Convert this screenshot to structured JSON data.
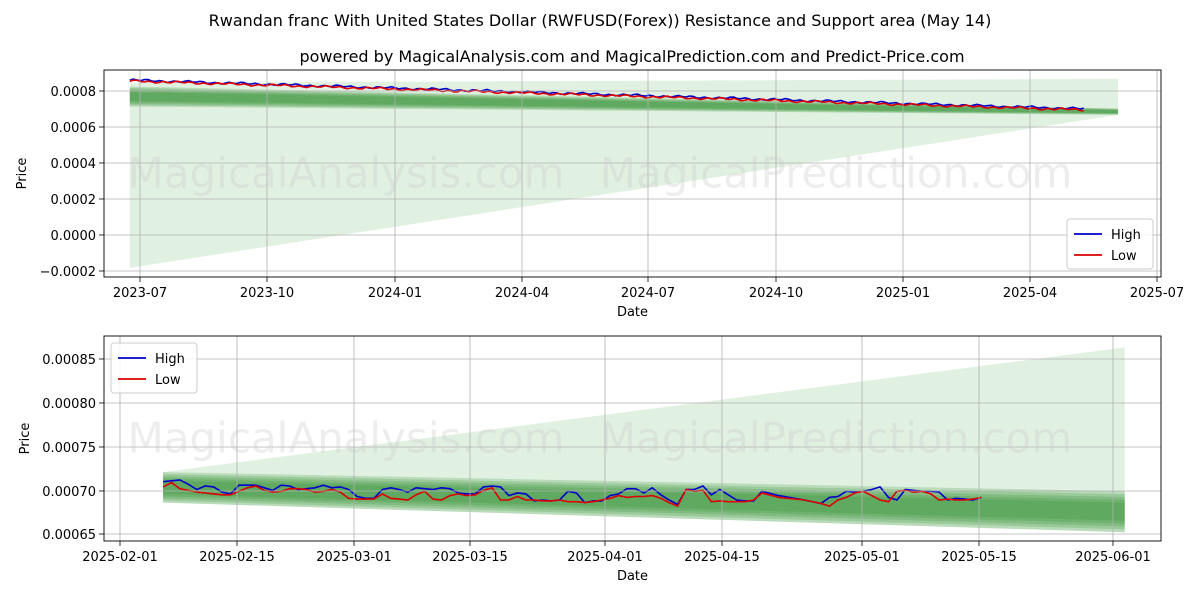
{
  "header": {
    "title": "Rwandan franc With United States Dollar (RWFUSD(Forex)) Resistance and Support area (May 14)",
    "subtitle": "powered by MagicalAnalysis.com and MagicalPrediction.com and Predict-Price.com"
  },
  "watermarks": [
    "MagicalAnalysis.com",
    "MagicalPrediction.com"
  ],
  "colors": {
    "high": "#0000cc",
    "low": "#dd0000",
    "band": "#2e8b2e",
    "fan": "#c8e6c8"
  },
  "chart_data": [
    {
      "type": "line",
      "xlabel": "Date",
      "ylabel": "Price",
      "x_ticks": [
        "2023-07",
        "2023-10",
        "2024-01",
        "2024-04",
        "2024-07",
        "2024-10",
        "2025-01",
        "2025-04",
        "2025-07"
      ],
      "y_ticks": [
        "−0.0002",
        "0.0000",
        "0.0002",
        "0.0004",
        "0.0006",
        "0.0008"
      ],
      "ylim": [
        -0.00022,
        0.00091
      ],
      "xlim_months": [
        -0.3,
        24.3
      ],
      "legend": {
        "position": "lower-right",
        "entries": [
          "High",
          "Low"
        ]
      },
      "series": [
        {
          "name": "High",
          "start": {
            "month": 0.3,
            "value": 0.000855
          },
          "end": {
            "month": 22.5,
            "value": 0.000698
          }
        },
        {
          "name": "Low",
          "start": {
            "month": 0.3,
            "value": 0.00085
          },
          "end": {
            "month": 22.5,
            "value": 0.000692
          }
        }
      ],
      "fan": {
        "start_month": 0.3,
        "end_month": 23.3,
        "start_top": 0.00084,
        "start_bottom": -0.00017,
        "end_top": 0.000862,
        "end_bottom": 0.000665
      },
      "band": {
        "start_month": 0.3,
        "end_month": 23.3,
        "start_top": 0.00082,
        "start_bottom": 0.00071,
        "end_top": 0.0007,
        "end_bottom": 0.000665
      }
    },
    {
      "type": "line",
      "xlabel": "Date",
      "ylabel": "Price",
      "x_ticks": [
        "2025-02-01",
        "2025-02-15",
        "2025-03-01",
        "2025-03-15",
        "2025-04-01",
        "2025-04-15",
        "2025-05-01",
        "2025-05-15",
        "2025-06-01"
      ],
      "y_ticks": [
        "0.00065",
        "0.00070",
        "0.00075",
        "0.00080",
        "0.00085"
      ],
      "ylim": [
        0.000643,
        0.000878
      ],
      "xlim_days": [
        -3.0,
        122.3
      ],
      "legend": {
        "position": "top-left",
        "entries": [
          "High",
          "Low"
        ]
      },
      "series": [
        {
          "name": "High",
          "day": [
            4,
            5,
            6,
            7,
            8,
            9,
            10,
            11,
            12,
            13,
            14,
            15,
            16,
            17,
            18,
            19,
            20,
            21,
            22,
            23,
            24,
            25,
            26,
            27,
            28,
            29,
            30,
            31,
            32,
            33,
            34,
            35,
            36,
            37,
            38,
            39,
            40,
            41,
            42,
            43,
            44,
            45,
            46,
            47,
            48,
            49,
            50,
            51,
            52,
            53,
            54,
            55,
            56,
            57,
            58,
            59,
            60,
            61,
            62,
            63,
            64,
            65,
            66,
            67,
            68,
            69,
            70,
            71,
            72,
            73,
            74,
            75,
            77,
            80,
            82,
            83,
            84,
            85,
            86,
            87,
            88,
            89,
            90,
            91,
            92,
            93,
            94,
            95,
            96,
            97,
            98,
            99,
            100,
            101
          ],
          "values": [
            0.000711,
            0.000712,
            0.000713,
            0.000708,
            0.000702,
            0.000706,
            0.000705,
            0.000699,
            0.000697,
            0.000707,
            0.000707,
            0.000707,
            0.000704,
            0.000701,
            0.000707,
            0.000706,
            0.000702,
            0.000703,
            0.000704,
            0.000707,
            0.000704,
            0.000705,
            0.000702,
            0.000694,
            0.000692,
            0.000692,
            0.000702,
            0.000704,
            0.000702,
            0.000699,
            0.000704,
            0.000703,
            0.000702,
            0.000704,
            0.000703,
            0.000698,
            0.000697,
            0.000697,
            0.000705,
            0.000706,
            0.000705,
            0.000695,
            0.000698,
            0.000697,
            0.000689,
            0.00069,
            0.000689,
            0.00069,
            0.0007,
            0.000698,
            0.000687,
            0.000689,
            0.000689,
            0.000695,
            0.000697,
            0.000703,
            0.000703,
            0.000698,
            0.000704,
            0.000696,
            0.00069,
            0.000685,
            0.000702,
            0.000702,
            0.000706,
            0.000696,
            0.000702,
            0.000696,
            0.00069,
            0.000689,
            0.000689,
            0.0007,
            0.000695,
            0.00069,
            0.000686,
            0.000693,
            0.000694,
            0.0007,
            0.000699,
            0.0007,
            0.000702,
            0.000705,
            0.000693,
            0.00069,
            0.000702,
            0.000701,
            0.0007,
            0.0007,
            0.000699,
            0.00069,
            0.000692,
            0.000691,
            0.00069,
            0.000693
          ]
        },
        {
          "name": "Low",
          "day": [
            4,
            5,
            6,
            7,
            8,
            9,
            10,
            11,
            12,
            13,
            14,
            15,
            16,
            17,
            18,
            19,
            20,
            21,
            22,
            23,
            24,
            25,
            26,
            27,
            28,
            29,
            30,
            31,
            32,
            33,
            34,
            35,
            36,
            37,
            38,
            39,
            40,
            41,
            42,
            43,
            44,
            45,
            46,
            47,
            48,
            49,
            50,
            51,
            52,
            53,
            54,
            55,
            56,
            57,
            58,
            59,
            60,
            61,
            62,
            63,
            64,
            65,
            66,
            67,
            68,
            69,
            70,
            71,
            72,
            73,
            74,
            75,
            77,
            80,
            82,
            83,
            84,
            85,
            86,
            87,
            88,
            89,
            90,
            91,
            92,
            93,
            94,
            95,
            96,
            97,
            98,
            99,
            100,
            101
          ],
          "values": [
            0.000705,
            0.00071,
            0.000703,
            0.000701,
            0.000699,
            0.000698,
            0.000697,
            0.000696,
            0.000696,
            0.0007,
            0.000704,
            0.000706,
            0.000701,
            0.000699,
            0.0007,
            0.000703,
            0.000703,
            0.000702,
            0.000699,
            0.0007,
            0.000702,
            0.000699,
            0.000692,
            0.000691,
            0.000691,
            0.000691,
            0.000697,
            0.000692,
            0.000691,
            0.00069,
            0.000696,
            0.0007,
            0.000691,
            0.00069,
            0.000695,
            0.000697,
            0.000695,
            0.000696,
            0.000701,
            0.000704,
            0.00069,
            0.00069,
            0.000694,
            0.00069,
            0.00069,
            0.000689,
            0.000689,
            0.00069,
            0.000688,
            0.000688,
            0.000687,
            0.000688,
            0.00069,
            0.000692,
            0.000695,
            0.000693,
            0.000694,
            0.000694,
            0.000695,
            0.000692,
            0.000687,
            0.000683,
            0.000702,
            0.0007,
            0.000701,
            0.000688,
            0.000689,
            0.000688,
            0.000688,
            0.000688,
            0.00069,
            0.000698,
            0.000693,
            0.00069,
            0.000686,
            0.000683,
            0.00069,
            0.000693,
            0.000698,
            0.0007,
            0.000695,
            0.00069,
            0.000688,
            0.0007,
            0.000701,
            0.000699,
            0.0007,
            0.000697,
            0.00069,
            0.000691,
            0.00069,
            0.00069,
            0.000691,
            0.000693
          ]
        }
      ],
      "fan": {
        "start_day": 4,
        "end_day": 118,
        "start_top": 0.000722,
        "start_bottom": 0.000687,
        "end_top": 0.000865,
        "end_bottom": 0.000653
      },
      "band": {
        "start_day": 4,
        "end_day": 118,
        "start_top": 0.000722,
        "start_bottom": 0.000687,
        "end_top": 0.0007,
        "end_bottom": 0.000653
      }
    }
  ]
}
